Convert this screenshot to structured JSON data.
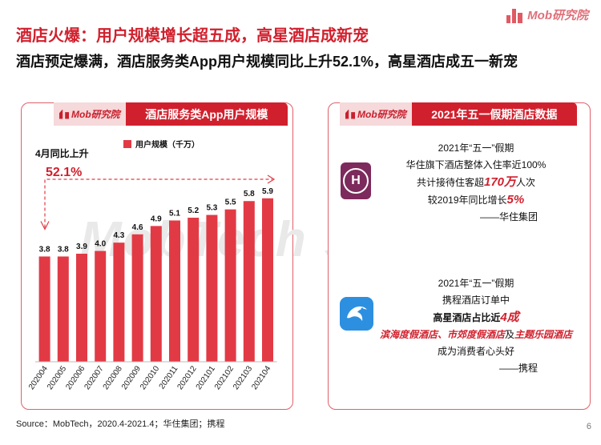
{
  "brand": {
    "name": "Mob研究院"
  },
  "title": "酒店火爆：用户规模增长超五成，高星酒店成新宠",
  "subtitle": "酒店预定爆满，酒店服务类App用户规模同比上升52.1%，高星酒店成五一新宠",
  "left_panel": {
    "header_logo": "Mob研究院",
    "header_title": "酒店服务类App用户规模",
    "growth_label": "4月同比上升",
    "growth_value": "52.1%",
    "watermark": "MobTech 袤博"
  },
  "chart_data": {
    "type": "bar",
    "categories": [
      "202004",
      "202005",
      "202006",
      "202007",
      "202008",
      "202009",
      "202010",
      "202011",
      "202012",
      "202101",
      "202102",
      "202103",
      "202104"
    ],
    "series": [
      {
        "name": "用户规模（千万）",
        "values": [
          3.8,
          3.8,
          3.9,
          4.0,
          4.3,
          4.6,
          4.9,
          5.1,
          5.2,
          5.3,
          5.5,
          5.8,
          5.9
        ],
        "labels": [
          "3.8",
          "3.8",
          "3.9",
          "4.0",
          "4.3",
          "4.6",
          "4.9",
          "5.1",
          "5.2",
          "5.3",
          "5.5",
          "5.8",
          "5.9"
        ]
      }
    ],
    "title": "酒店服务类App用户规模",
    "ylim": [
      0,
      6.5
    ],
    "grid": false,
    "legend": "top",
    "color": "#e23a45"
  },
  "right_panel": {
    "header_logo": "Mob研究院",
    "header_title": "2021年五一假期酒店数据",
    "huazhu": {
      "lines": [
        "2021年“五一”假期",
        "华住旗下酒店整体入住率近100%"
      ],
      "line3_pre": "共计接待住客超",
      "line3_em": "170万",
      "line3_post": "人次",
      "line4_pre": "较2019年同比增长",
      "line4_em": "5%",
      "signature": "——华住集团"
    },
    "ctrip": {
      "lines": [
        "2021年“五一”假期",
        "携程酒店订单中"
      ],
      "line3_pre": "高星酒店占比近",
      "line3_em": "4成",
      "line4_a": "滨海度假酒店",
      "line4_sep1": "、",
      "line4_b": "市郊度假酒店",
      "line4_sep2": "及",
      "line4_c": "主题乐园酒店",
      "line5": "成为消费者心头好",
      "signature": "——携程"
    }
  },
  "source": "Source：MobTech，2020.4-2021.4；华住集团；携程",
  "page_number": "6"
}
